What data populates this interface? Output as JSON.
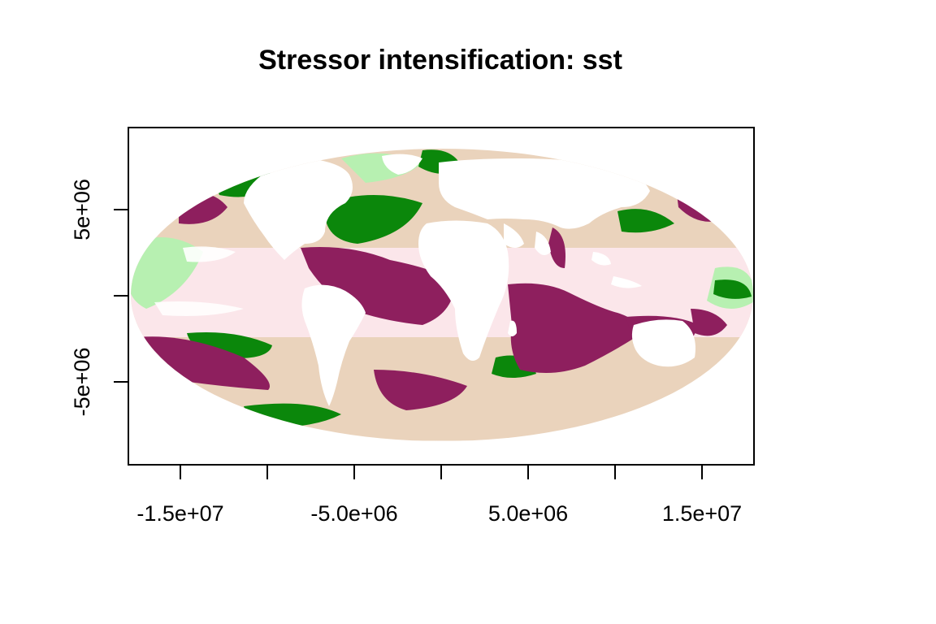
{
  "map": {
    "title": "Stressor intensification: sst",
    "x_ticks": [
      "-1.5e+07",
      "-5.0e+06",
      "5.0e+06",
      "1.5e+07"
    ],
    "y_ticks": [
      "5e+06",
      "-5e+06"
    ],
    "projection": "Mollweide",
    "x_range": [
      -18000000,
      18000000
    ],
    "y_range": [
      -9500000,
      9500000
    ],
    "classes": [
      {
        "name": "strong-intensification",
        "color": "#8e1f5e"
      },
      {
        "name": "moderate-intensification",
        "color": "#fde8ee"
      },
      {
        "name": "neutral",
        "color": "#ead3bc"
      },
      {
        "name": "moderate-deintensification",
        "color": "#b7f0b1"
      },
      {
        "name": "strong-deintensification",
        "color": "#0b870b"
      },
      {
        "name": "land",
        "color": "#ffffff"
      }
    ]
  }
}
